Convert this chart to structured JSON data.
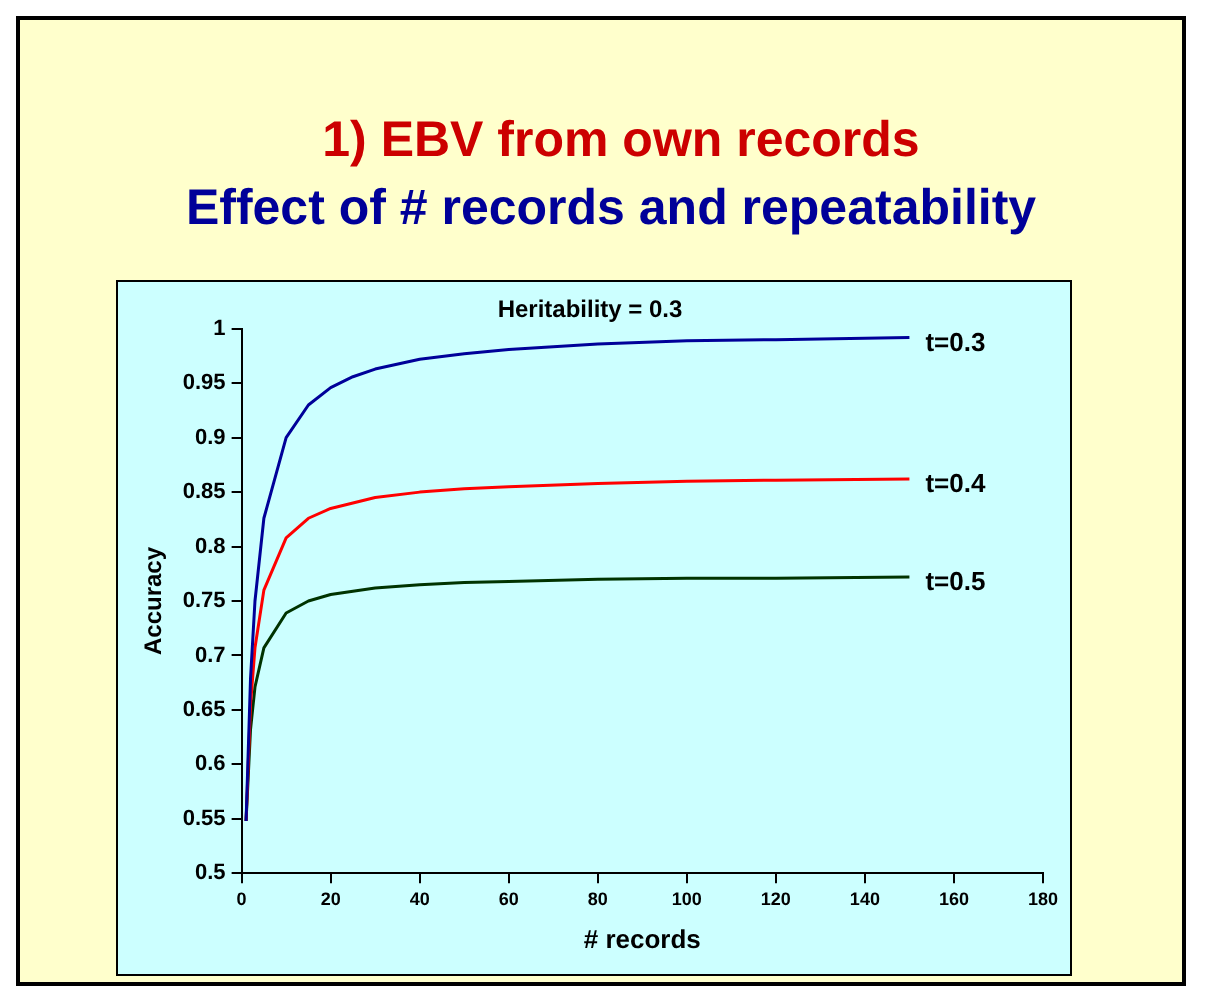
{
  "chart_data": {
    "type": "line",
    "title": "1) EBV from own records",
    "subtitle": "Effect of # records and repeatability",
    "annotations": [
      "Heritability = 0.3"
    ],
    "xlabel": "# records",
    "ylabel": "Accuracy",
    "x": [
      1,
      2,
      3,
      5,
      10,
      15,
      20,
      25,
      30,
      40,
      50,
      60,
      80,
      100,
      120,
      150
    ],
    "series": [
      {
        "name": "t=0.3",
        "color": "#000099",
        "values": [
          0.548,
          0.679,
          0.75,
          0.826,
          0.9,
          0.93,
          0.946,
          0.956,
          0.963,
          0.972,
          0.977,
          0.981,
          0.986,
          0.989,
          0.99,
          0.992
        ]
      },
      {
        "name": "t=0.4",
        "color": "#ff0000",
        "values": [
          0.548,
          0.655,
          0.707,
          0.76,
          0.808,
          0.826,
          0.835,
          0.84,
          0.845,
          0.85,
          0.853,
          0.855,
          0.858,
          0.86,
          0.861,
          0.862
        ]
      },
      {
        "name": "t=0.5",
        "color": "#003300",
        "values": [
          0.548,
          0.632,
          0.671,
          0.707,
          0.739,
          0.75,
          0.756,
          0.759,
          0.762,
          0.765,
          0.767,
          0.768,
          0.77,
          0.771,
          0.771,
          0.772
        ]
      }
    ],
    "xlim": [
      0,
      180
    ],
    "xticks": [
      0,
      20,
      40,
      60,
      80,
      100,
      120,
      140,
      160,
      180
    ],
    "ylim": [
      0.5,
      1
    ],
    "yticks": [
      0.5,
      0.55,
      0.6,
      0.65,
      0.7,
      0.75,
      0.8,
      0.85,
      0.9,
      0.95,
      1
    ],
    "grid": false,
    "legend": false,
    "marker": "none",
    "line_style": "solid"
  }
}
